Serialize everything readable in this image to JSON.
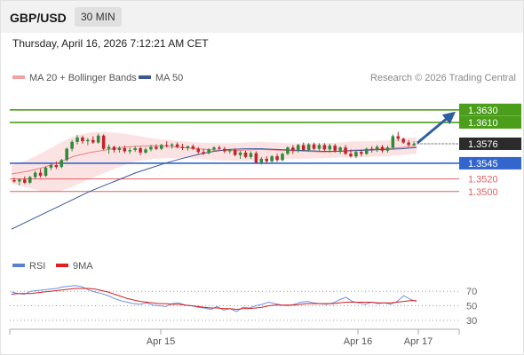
{
  "header": {
    "symbol": "GBP/USD",
    "timeframe": "30 MIN"
  },
  "timestamp": "Thursday, April 16, 2026 7:12:21 AM CET",
  "legend": {
    "bb_label": "MA 20 + Bollinger Bands",
    "ma50_label": "MA 50",
    "credit": "Research © 2026 Trading Central",
    "rsi_label": "RSI",
    "ma9_label": "9MA"
  },
  "colors": {
    "green": "#4a9e1a",
    "blue": "#3366cc",
    "red": "#e06060",
    "band": "#fbd9d9",
    "bb_mid": "#e88080",
    "ma50": "#3a5899",
    "arrow": "#2e5fa0",
    "candle_up": "#2f8a3a",
    "candle_down": "#c2242b"
  },
  "chart_data": [
    {
      "type": "candlestick",
      "ylim": [
        1.3405,
        1.3665
      ],
      "x_ticks": [
        "Apr 15",
        "Apr 16",
        "Apr 17"
      ],
      "current_price": "1.3576",
      "levels": [
        {
          "label": "1.3630",
          "value": 1.363,
          "kind": "target"
        },
        {
          "label": "1.3610",
          "value": 1.361,
          "kind": "target"
        },
        {
          "label": "1.3545",
          "value": 1.3545,
          "kind": "pivot"
        },
        {
          "label": "1.3520",
          "value": 1.352,
          "kind": "support"
        },
        {
          "label": "1.3500",
          "value": 1.35,
          "kind": "support"
        }
      ],
      "candles": [
        [
          1.3518,
          1.3522,
          1.3514,
          1.3516
        ],
        [
          1.3516,
          1.3521,
          1.351,
          1.3519
        ],
        [
          1.3519,
          1.3524,
          1.3512,
          1.3514
        ],
        [
          1.3514,
          1.3525,
          1.3512,
          1.3523
        ],
        [
          1.3523,
          1.3533,
          1.352,
          1.353
        ],
        [
          1.353,
          1.3536,
          1.3522,
          1.3525
        ],
        [
          1.3525,
          1.354,
          1.3523,
          1.3538
        ],
        [
          1.3538,
          1.3545,
          1.3534,
          1.3542
        ],
        [
          1.3542,
          1.3548,
          1.3536,
          1.3539
        ],
        [
          1.3539,
          1.3552,
          1.3537,
          1.355
        ],
        [
          1.355,
          1.357,
          1.3548,
          1.3568
        ],
        [
          1.3568,
          1.3582,
          1.3564,
          1.3579
        ],
        [
          1.3579,
          1.359,
          1.3575,
          1.3586
        ],
        [
          1.3586,
          1.3589,
          1.3576,
          1.358
        ],
        [
          1.358,
          1.3585,
          1.3574,
          1.3582
        ],
        [
          1.3582,
          1.3588,
          1.3576,
          1.3578
        ],
        [
          1.3578,
          1.3592,
          1.3576,
          1.3589
        ],
        [
          1.3589,
          1.3591,
          1.3566,
          1.3568
        ],
        [
          1.3568,
          1.3575,
          1.356,
          1.3571
        ],
        [
          1.3571,
          1.3573,
          1.3562,
          1.3566
        ],
        [
          1.3566,
          1.3572,
          1.3562,
          1.3569
        ],
        [
          1.3569,
          1.3573,
          1.3561,
          1.3564
        ],
        [
          1.3564,
          1.357,
          1.356,
          1.3566
        ],
        [
          1.3566,
          1.3572,
          1.3563,
          1.3569
        ],
        [
          1.3569,
          1.3571,
          1.3558,
          1.3562
        ],
        [
          1.3562,
          1.357,
          1.356,
          1.3567
        ],
        [
          1.3567,
          1.3574,
          1.3564,
          1.3571
        ],
        [
          1.3571,
          1.3575,
          1.3566,
          1.3568
        ],
        [
          1.3568,
          1.3576,
          1.3566,
          1.3574
        ],
        [
          1.3574,
          1.358,
          1.357,
          1.3573
        ],
        [
          1.3573,
          1.3577,
          1.3568,
          1.3575
        ],
        [
          1.3575,
          1.3578,
          1.3569,
          1.3571
        ],
        [
          1.3571,
          1.3576,
          1.3566,
          1.3569
        ],
        [
          1.3569,
          1.3573,
          1.3565,
          1.3572
        ],
        [
          1.3572,
          1.3575,
          1.3566,
          1.3568
        ],
        [
          1.3568,
          1.3571,
          1.356,
          1.3563
        ],
        [
          1.3563,
          1.3568,
          1.3558,
          1.3561
        ],
        [
          1.3561,
          1.3569,
          1.3559,
          1.3567
        ],
        [
          1.3567,
          1.3572,
          1.3563,
          1.357
        ],
        [
          1.357,
          1.3573,
          1.3566,
          1.3568
        ],
        [
          1.3568,
          1.3571,
          1.3561,
          1.3564
        ],
        [
          1.3564,
          1.3568,
          1.356,
          1.3566
        ],
        [
          1.3566,
          1.3569,
          1.3556,
          1.3558
        ],
        [
          1.3558,
          1.3565,
          1.3552,
          1.3562
        ],
        [
          1.3562,
          1.3565,
          1.3553,
          1.3555
        ],
        [
          1.3555,
          1.3564,
          1.3552,
          1.3561
        ],
        [
          1.3561,
          1.3564,
          1.3544,
          1.3546
        ],
        [
          1.3546,
          1.3555,
          1.3543,
          1.3552
        ],
        [
          1.3552,
          1.3556,
          1.3544,
          1.3548
        ],
        [
          1.3548,
          1.3558,
          1.3545,
          1.3556
        ],
        [
          1.3556,
          1.356,
          1.3547,
          1.355
        ],
        [
          1.355,
          1.3562,
          1.3548,
          1.356
        ],
        [
          1.356,
          1.3572,
          1.3558,
          1.357
        ],
        [
          1.357,
          1.3574,
          1.356,
          1.3565
        ],
        [
          1.3565,
          1.3576,
          1.3562,
          1.3574
        ],
        [
          1.3574,
          1.3578,
          1.3564,
          1.3566
        ],
        [
          1.3566,
          1.3577,
          1.3563,
          1.3575
        ],
        [
          1.3575,
          1.3578,
          1.3566,
          1.3568
        ],
        [
          1.3568,
          1.3577,
          1.3565,
          1.3574
        ],
        [
          1.3574,
          1.3577,
          1.3564,
          1.3567
        ],
        [
          1.3567,
          1.3576,
          1.3562,
          1.3573
        ],
        [
          1.3573,
          1.3576,
          1.3562,
          1.3565
        ],
        [
          1.3565,
          1.3572,
          1.356,
          1.357
        ],
        [
          1.357,
          1.3574,
          1.3558,
          1.356
        ],
        [
          1.356,
          1.3567,
          1.3554,
          1.3556
        ],
        [
          1.3556,
          1.3565,
          1.3553,
          1.3563
        ],
        [
          1.3563,
          1.3566,
          1.3556,
          1.356
        ],
        [
          1.356,
          1.357,
          1.3558,
          1.3568
        ],
        [
          1.3568,
          1.3572,
          1.3562,
          1.3566
        ],
        [
          1.3566,
          1.3574,
          1.3563,
          1.3571
        ],
        [
          1.3571,
          1.3574,
          1.3562,
          1.3565
        ],
        [
          1.3565,
          1.3573,
          1.3562,
          1.357
        ],
        [
          1.357,
          1.3591,
          1.3568,
          1.3588
        ],
        [
          1.3588,
          1.3595,
          1.358,
          1.3584
        ],
        [
          1.3584,
          1.3586,
          1.3576,
          1.3578
        ],
        [
          1.3578,
          1.3582,
          1.3572,
          1.3574
        ],
        [
          1.3574,
          1.358,
          1.3572,
          1.3576
        ]
      ],
      "bb_mid": [
        1.3528,
        1.3532,
        1.3538,
        1.3546,
        1.3556,
        1.3562,
        1.3566,
        1.357,
        1.3572,
        1.3573,
        1.3572,
        1.357,
        1.3568,
        1.3566,
        1.3565,
        1.3566,
        1.3567,
        1.3566,
        1.3565,
        1.3564,
        1.3563,
        1.3564,
        1.3566,
        1.3567,
        1.3568,
        1.357,
        1.3572
      ],
      "bb_upper": [
        1.3542,
        1.355,
        1.3562,
        1.3576,
        1.3588,
        1.3594,
        1.3595,
        1.3593,
        1.3589,
        1.3585,
        1.3582,
        1.358,
        1.3578,
        1.3577,
        1.3577,
        1.3578,
        1.3579,
        1.3578,
        1.3577,
        1.3577,
        1.3577,
        1.3578,
        1.358,
        1.358,
        1.3581,
        1.3584,
        1.3587
      ],
      "bb_lower": [
        1.3512,
        1.3506,
        1.35,
        1.35,
        1.3508,
        1.352,
        1.353,
        1.354,
        1.3548,
        1.3552,
        1.3553,
        1.3553,
        1.3552,
        1.355,
        1.3549,
        1.3549,
        1.355,
        1.3551,
        1.3552,
        1.3552,
        1.3553,
        1.3554,
        1.3554,
        1.3555,
        1.3556,
        1.3558,
        1.356
      ],
      "ma50": [
        1.344,
        1.3452,
        1.3464,
        1.3476,
        1.3488,
        1.35,
        1.351,
        1.352,
        1.353,
        1.3538,
        1.3546,
        1.3553,
        1.3559,
        1.3564,
        1.3567,
        1.3568,
        1.3568,
        1.3567,
        1.3566,
        1.3565,
        1.3564,
        1.3564,
        1.3565,
        1.3566,
        1.3567,
        1.3568,
        1.357
      ]
    },
    {
      "type": "line",
      "ylim": [
        20,
        85
      ],
      "y_ticks": [
        "70",
        "50",
        "30"
      ],
      "series": [
        {
          "name": "RSI",
          "values": [
            69,
            67,
            66,
            70,
            71,
            72,
            73,
            74,
            76,
            77,
            78,
            76,
            72,
            69,
            67,
            64,
            60,
            57,
            55,
            53,
            52,
            54,
            51,
            50,
            49,
            53,
            54,
            51,
            50,
            48,
            47,
            45,
            49,
            44,
            46,
            42,
            48,
            47,
            50,
            52,
            55,
            53,
            51,
            50,
            52,
            55,
            56,
            54,
            53,
            52,
            54,
            58,
            62,
            56,
            54,
            52,
            55,
            53,
            54,
            52,
            56,
            64,
            59,
            56
          ]
        },
        {
          "name": "9MA",
          "values": [
            66,
            67,
            67,
            67,
            68,
            69,
            70,
            71,
            72,
            73,
            74,
            74,
            74,
            73,
            71,
            69,
            66,
            63,
            60,
            58,
            56,
            55,
            54,
            53,
            53,
            52,
            52,
            51,
            50,
            49,
            48,
            47,
            47,
            46,
            46,
            45,
            46,
            46,
            47,
            48,
            50,
            51,
            51,
            51,
            51,
            52,
            53,
            53,
            53,
            53,
            53,
            54,
            55,
            55,
            55,
            55,
            55,
            54,
            54,
            54,
            55,
            56,
            57,
            57
          ]
        }
      ]
    }
  ]
}
